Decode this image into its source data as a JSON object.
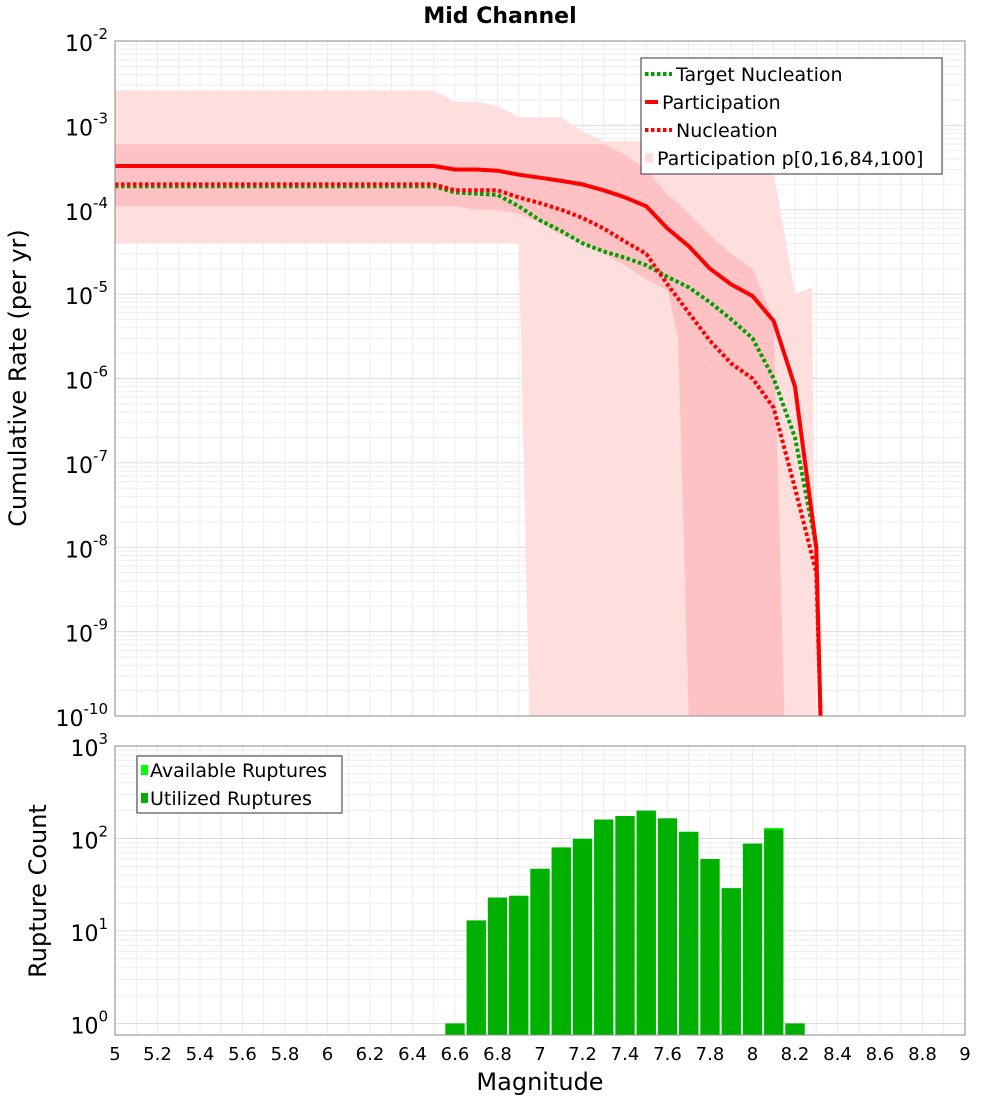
{
  "chart_data": [
    {
      "type": "line",
      "title": "Mid Channel",
      "ylabel": "Cumulative Rate (per yr)",
      "xlabel": "",
      "xlim": [
        5,
        9
      ],
      "ylim": [
        1e-10,
        0.01
      ],
      "yscale": "log",
      "y_tick_base": "10",
      "y_tick_exponents": [
        "-2",
        "-3",
        "-4",
        "-5",
        "-6",
        "-7",
        "-8",
        "-9",
        "-10"
      ],
      "grid": true,
      "legend_position": "top-right",
      "series": [
        {
          "name": "Target Nucleation",
          "style": "dotted",
          "color": "#00a000",
          "x": [
            5.0,
            6.5,
            6.6,
            6.8,
            6.9,
            7.0,
            7.1,
            7.2,
            7.3,
            7.4,
            7.5,
            7.6,
            7.7,
            7.8,
            7.9,
            8.0,
            8.1,
            8.2,
            8.3
          ],
          "y": [
            0.00019,
            0.00019,
            0.00016,
            0.00015,
            0.00011,
            7.5e-05,
            5.6e-05,
            4e-05,
            3.2e-05,
            2.7e-05,
            2.2e-05,
            1.6e-05,
            1.2e-05,
            8e-06,
            5e-06,
            3e-06,
            1e-06,
            2e-07,
            1e-08
          ]
        },
        {
          "name": "Participation",
          "style": "solid",
          "color": "#ff0000",
          "x": [
            5.0,
            6.5,
            6.6,
            6.7,
            6.8,
            6.9,
            7.0,
            7.1,
            7.2,
            7.3,
            7.4,
            7.5,
            7.6,
            7.7,
            7.8,
            7.9,
            8.0,
            8.1,
            8.2,
            8.3,
            8.32
          ],
          "y": [
            0.00033,
            0.00033,
            0.0003,
            0.0003,
            0.00029,
            0.00026,
            0.00024,
            0.00022,
            0.0002,
            0.00017,
            0.00014,
            0.00011,
            6e-05,
            3.7e-05,
            2e-05,
            1.3e-05,
            9.5e-06,
            4.8e-06,
            8e-07,
            1e-08,
            1e-10
          ]
        },
        {
          "name": "Nucleation",
          "style": "dotted",
          "color": "#ff0000",
          "x": [
            5.0,
            6.5,
            6.6,
            6.8,
            6.9,
            7.0,
            7.1,
            7.2,
            7.3,
            7.4,
            7.5,
            7.6,
            7.7,
            7.8,
            7.9,
            8.0,
            8.1,
            8.2,
            8.3,
            8.32
          ],
          "y": [
            0.0002,
            0.0002,
            0.00017,
            0.00017,
            0.00014,
            0.00012,
            0.0001,
            8e-05,
            6e-05,
            4.2e-05,
            3e-05,
            1.3e-05,
            6e-06,
            2.8e-06,
            1.5e-06,
            1e-06,
            4.5e-07,
            5e-08,
            5e-09,
            1e-10
          ]
        }
      ],
      "bands": [
        {
          "name": "Participation p[0,16,84,100]",
          "role": "outer p0-p100",
          "color": "#ffdede",
          "x": [
            5.0,
            6.5,
            6.6,
            6.7,
            6.8,
            6.9,
            6.95,
            7.0,
            7.1,
            7.2,
            7.3,
            7.4,
            7.5,
            7.6,
            7.7,
            7.8,
            7.9,
            8.0,
            8.1,
            8.2,
            8.28,
            8.3
          ],
          "upper": [
            0.0026,
            0.0026,
            0.0019,
            0.0019,
            0.0017,
            0.00125,
            0.00125,
            0.00125,
            0.00125,
            0.00085,
            0.00065,
            0.00065,
            0.00065,
            0.00065,
            0.00065,
            0.00065,
            0.00065,
            0.00045,
            0.00028,
            1e-05,
            1.2e-05,
            1e-10
          ],
          "lower": [
            4e-05,
            4e-05,
            4e-05,
            4e-05,
            4e-05,
            4e-05,
            1e-10,
            1e-10,
            1e-10,
            1e-10,
            1e-10,
            1e-10,
            1e-10,
            1e-10,
            1e-10,
            1e-10,
            1e-10,
            1e-10,
            1e-10,
            1e-10,
            1e-10,
            1e-10
          ]
        },
        {
          "name": "",
          "role": "inner p16-p84",
          "color": "#ffc2c4",
          "x": [
            5.0,
            6.5,
            6.6,
            6.7,
            6.8,
            6.9,
            7.0,
            7.1,
            7.2,
            7.3,
            7.4,
            7.5,
            7.6,
            7.65,
            7.7,
            7.8,
            7.9,
            8.0,
            8.1,
            8.15
          ],
          "upper": [
            0.0006,
            0.0006,
            0.0006,
            0.0006,
            0.0006,
            0.0006,
            0.0006,
            0.0006,
            0.0006,
            0.0006,
            0.00045,
            0.0003,
            0.00015,
            0.00012,
            9e-05,
            5e-05,
            3e-05,
            2e-05,
            5e-06,
            1e-10
          ],
          "lower": [
            0.00011,
            0.00011,
            0.00011,
            0.0001,
            0.0001,
            9e-05,
            7e-05,
            5e-05,
            4e-05,
            3e-05,
            2.2e-05,
            1.5e-05,
            1.1e-05,
            3e-06,
            1e-10,
            1e-10,
            1e-10,
            1e-10,
            1e-10,
            1e-10
          ]
        }
      ]
    },
    {
      "type": "bar",
      "ylabel": "Rupture Count",
      "xlabel": "Magnitude",
      "xlim": [
        5,
        9
      ],
      "ylim": [
        0.75,
        1000
      ],
      "yscale": "log",
      "y_tick_base": "10",
      "y_tick_exponents": [
        "3",
        "2",
        "1",
        "0"
      ],
      "x_ticks": [
        "5",
        "5.2",
        "5.4",
        "5.6",
        "5.8",
        "6",
        "6.2",
        "6.4",
        "6.6",
        "6.8",
        "7",
        "7.2",
        "7.4",
        "7.6",
        "7.8",
        "8",
        "8.2",
        "8.4",
        "8.6",
        "8.8",
        "9"
      ],
      "grid": true,
      "legend_position": "top-left",
      "bin_width": 0.1,
      "series": [
        {
          "name": "Available Ruptures",
          "color": "#00ff00",
          "x": [
            6.6,
            6.7,
            6.8,
            6.9,
            7.0,
            7.1,
            7.2,
            7.3,
            7.4,
            7.5,
            7.6,
            7.7,
            7.8,
            7.9,
            8.0,
            8.1,
            8.2
          ],
          "values": [
            1,
            13,
            23,
            24,
            47,
            80,
            99,
            160,
            175,
            200,
            165,
            118,
            60,
            29,
            88,
            130,
            1
          ]
        },
        {
          "name": "Utilized Ruptures",
          "color": "#00b000",
          "x": [
            6.6,
            6.7,
            6.8,
            6.9,
            7.0,
            7.1,
            7.2,
            7.3,
            7.4,
            7.5,
            7.6,
            7.7,
            7.8,
            7.9,
            8.0,
            8.1,
            8.2
          ],
          "values": [
            1,
            13,
            23,
            24,
            47,
            80,
            99,
            160,
            175,
            200,
            165,
            118,
            60,
            29,
            88,
            125,
            1
          ]
        }
      ]
    }
  ]
}
